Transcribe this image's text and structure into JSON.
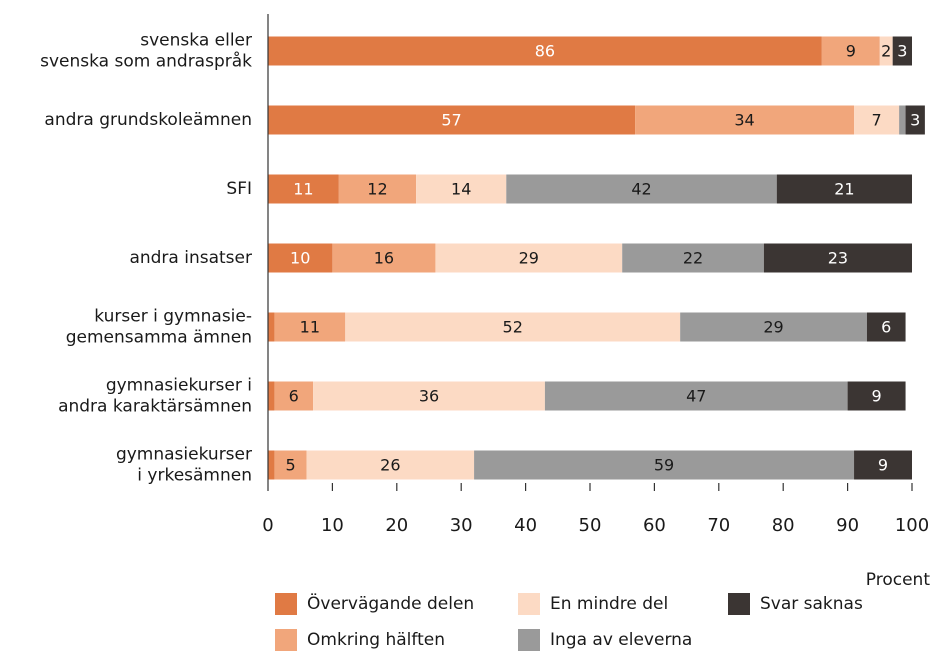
{
  "chart_data": {
    "type": "stacked-bar-horizontal",
    "x_label": "Procent",
    "categories": [
      "svenska eller\nsvenska som andraspråk",
      "andra grundskoleämnen",
      "SFI",
      "andra insatser",
      "kurser i gymnasie-\ngemensamma ämnen",
      "gymnasiekurser i\nandra karaktärsämnen",
      "gymnasiekurser\ni yrkesämnen"
    ],
    "series": [
      {
        "name": "Övervägande delen",
        "color": "#e07a44",
        "values": [
          86,
          57,
          11,
          10,
          1,
          1,
          1
        ]
      },
      {
        "name": "Omkring hälften",
        "color": "#f1a67b",
        "values": [
          9,
          34,
          12,
          16,
          11,
          6,
          5
        ]
      },
      {
        "name": "En mindre del",
        "color": "#fcdac4",
        "values": [
          2,
          7,
          14,
          29,
          52,
          36,
          26
        ]
      },
      {
        "name": "Inga av eleverna",
        "color": "#9a9a9a",
        "values": [
          0,
          1,
          42,
          22,
          29,
          47,
          59
        ]
      },
      {
        "name": "Svar saknas",
        "color": "#3b3533",
        "values": [
          3,
          3,
          21,
          23,
          6,
          9,
          9
        ]
      }
    ],
    "xlim": [
      0,
      100
    ],
    "xticks": [
      0,
      10,
      20,
      30,
      40,
      50,
      60,
      70,
      80,
      90,
      100
    ],
    "grid": false
  }
}
